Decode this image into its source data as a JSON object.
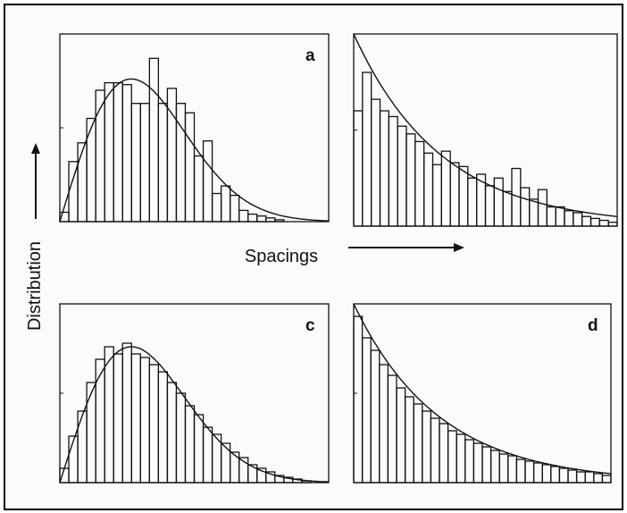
{
  "figure": {
    "y_label": "Distribution",
    "x_label": "Spacings"
  },
  "chart_data": [
    {
      "type": "histogram",
      "panel_label": "a",
      "bin_width": 0.1,
      "x": [
        0.0,
        0.1,
        0.2,
        0.3,
        0.4,
        0.5,
        0.6,
        0.7,
        0.8,
        0.9,
        1.0,
        1.1,
        1.2,
        1.3,
        1.4,
        1.5,
        1.6,
        1.7,
        1.8,
        1.9,
        2.0,
        2.1,
        2.2,
        2.3,
        2.4,
        2.5,
        2.6,
        2.7,
        2.8,
        2.9
      ],
      "values": [
        0.05,
        0.32,
        0.42,
        0.55,
        0.7,
        0.74,
        0.74,
        0.73,
        0.63,
        0.63,
        0.87,
        0.63,
        0.71,
        0.63,
        0.58,
        0.35,
        0.43,
        0.15,
        0.19,
        0.14,
        0.06,
        0.04,
        0.03,
        0.02,
        0.01,
        0.0,
        0.0,
        0.0,
        0.0,
        0.0
      ],
      "curve": "wigner"
    },
    {
      "type": "histogram",
      "panel_label": "",
      "bin_width": 0.1,
      "x": [
        0.0,
        0.1,
        0.2,
        0.3,
        0.4,
        0.5,
        0.6,
        0.7,
        0.8,
        0.9,
        1.0,
        1.1,
        1.2,
        1.3,
        1.4,
        1.5,
        1.6,
        1.7,
        1.8,
        1.9,
        2.0,
        2.1,
        2.2,
        2.3,
        2.4,
        2.5,
        2.6,
        2.7,
        2.8,
        2.9
      ],
      "values": [
        0.6,
        0.8,
        0.66,
        0.6,
        0.57,
        0.52,
        0.48,
        0.44,
        0.38,
        0.32,
        0.39,
        0.33,
        0.31,
        0.25,
        0.27,
        0.21,
        0.25,
        0.18,
        0.3,
        0.2,
        0.14,
        0.19,
        0.1,
        0.1,
        0.08,
        0.07,
        0.05,
        0.04,
        0.03,
        0.02
      ],
      "curve": "poisson"
    },
    {
      "type": "histogram",
      "panel_label": "c",
      "bin_width": 0.1,
      "x": [
        0.0,
        0.1,
        0.2,
        0.3,
        0.4,
        0.5,
        0.6,
        0.7,
        0.8,
        0.9,
        1.0,
        1.1,
        1.2,
        1.3,
        1.4,
        1.5,
        1.6,
        1.7,
        1.8,
        1.9,
        2.0,
        2.1,
        2.2,
        2.3,
        2.4,
        2.5,
        2.6,
        2.7,
        2.8,
        2.9
      ],
      "values": [
        0.08,
        0.26,
        0.4,
        0.56,
        0.69,
        0.76,
        0.72,
        0.78,
        0.72,
        0.7,
        0.66,
        0.62,
        0.56,
        0.5,
        0.43,
        0.38,
        0.31,
        0.27,
        0.22,
        0.17,
        0.14,
        0.1,
        0.08,
        0.06,
        0.04,
        0.03,
        0.02,
        0.01,
        0.0,
        0.0
      ],
      "curve": "wigner"
    },
    {
      "type": "histogram",
      "panel_label": "d",
      "bin_width": 0.1,
      "x": [
        0.0,
        0.1,
        0.2,
        0.3,
        0.4,
        0.5,
        0.6,
        0.7,
        0.8,
        0.9,
        1.0,
        1.1,
        1.2,
        1.3,
        1.4,
        1.5,
        1.6,
        1.7,
        1.8,
        1.9,
        2.0,
        2.1,
        2.2,
        2.3,
        2.4,
        2.5,
        2.6,
        2.7,
        2.8,
        2.9
      ],
      "values": [
        0.93,
        0.81,
        0.74,
        0.66,
        0.6,
        0.53,
        0.48,
        0.44,
        0.4,
        0.36,
        0.33,
        0.29,
        0.27,
        0.24,
        0.22,
        0.2,
        0.18,
        0.16,
        0.15,
        0.13,
        0.12,
        0.11,
        0.1,
        0.09,
        0.08,
        0.07,
        0.06,
        0.06,
        0.05,
        0.04
      ],
      "curve": "poisson"
    }
  ]
}
